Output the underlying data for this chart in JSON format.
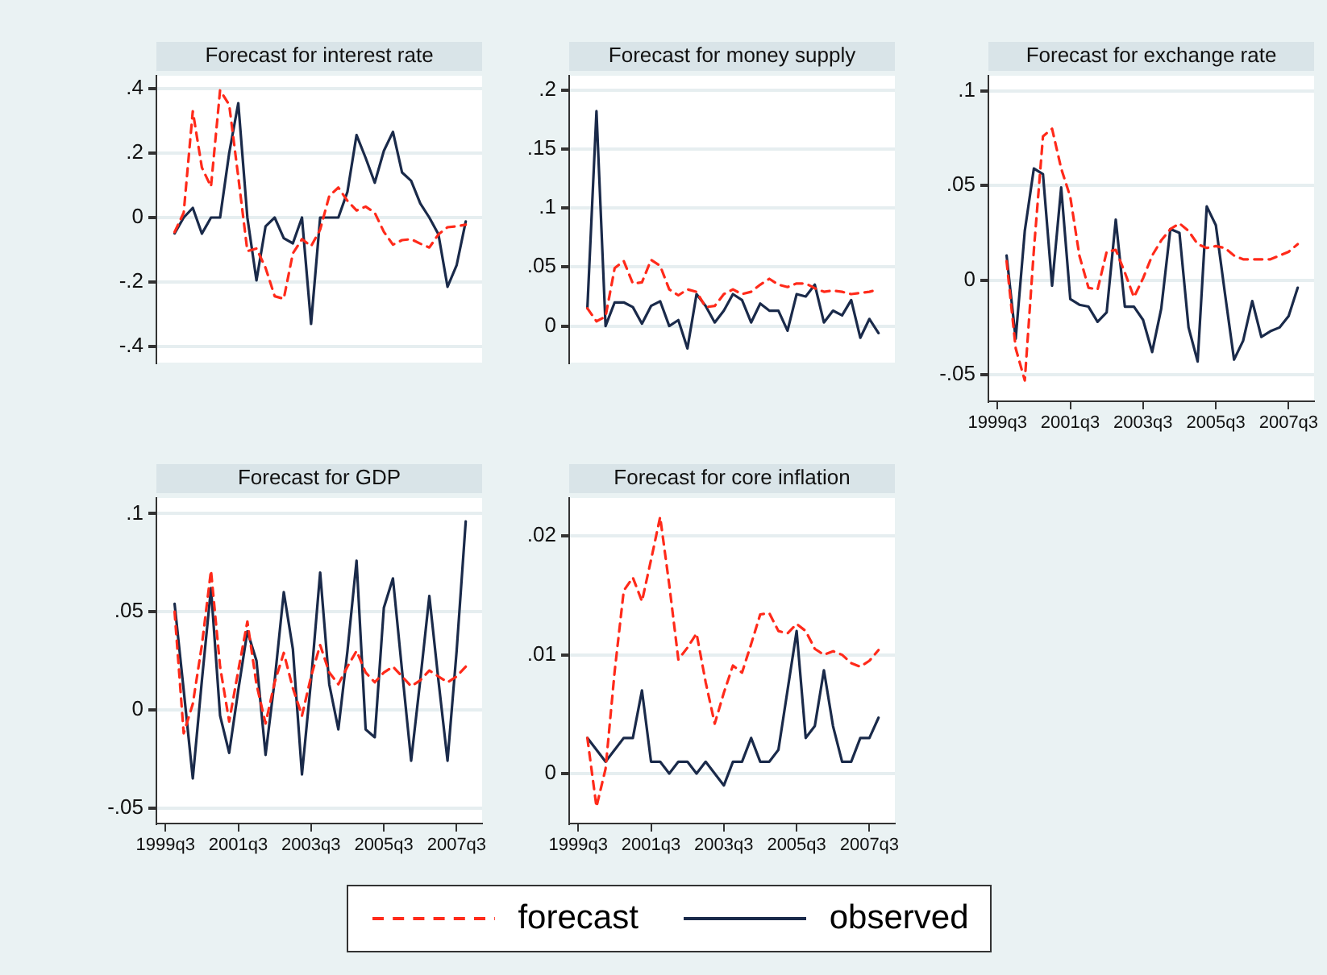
{
  "chart_data": [
    {
      "type": "line",
      "title": "Forecast for interest rate",
      "categories": [
        null,
        null,
        null,
        null,
        null,
        null,
        null,
        null,
        null,
        null,
        null,
        null,
        null,
        null,
        null,
        null,
        null,
        null,
        null,
        null,
        null,
        null,
        null,
        null,
        null,
        null,
        null,
        null,
        null,
        null,
        null,
        null,
        null,
        null
      ],
      "ylim": [
        -0.45,
        0.44
      ],
      "yticks": [
        {
          "value": -0.4,
          "label": "-.4"
        },
        {
          "value": -0.2,
          "label": "-.2"
        },
        {
          "value": 0,
          "label": "0"
        },
        {
          "value": 0.2,
          "label": ".2"
        },
        {
          "value": 0.4,
          "label": ".4"
        }
      ],
      "tick_labels": "y",
      "grid": "y",
      "legend": "bottom",
      "marker": "none",
      "series": [
        {
          "name": "forecast",
          "color": "#ff2a1a",
          "line_style": "dashed",
          "values": [
            null,
            -0.045,
            0.015,
            0.33,
            0.155,
            0.096,
            0.395,
            0.35,
            0.126,
            -0.104,
            -0.096,
            -0.156,
            -0.244,
            -0.252,
            -0.111,
            -0.067,
            -0.089,
            -0.037,
            0.067,
            0.093,
            0.052,
            0.022,
            0.034,
            0.015,
            -0.044,
            -0.084,
            -0.07,
            -0.067,
            -0.081,
            -0.093,
            -0.052,
            -0.03,
            -0.027,
            -0.022
          ]
        },
        {
          "name": "observed",
          "color": "#1a2a4a",
          "line_style": "solid",
          "values": [
            null,
            -0.049,
            0,
            0.03,
            -0.05,
            0,
            0,
            0.2,
            0.355,
            0,
            -0.195,
            -0.027,
            0,
            -0.064,
            -0.08,
            0,
            -0.33,
            0,
            0,
            0,
            0.08,
            0.256,
            0.185,
            0.108,
            0.207,
            0.266,
            0.14,
            0.114,
            0.044,
            0,
            -0.052,
            -0.215,
            -0.148,
            -0.012
          ]
        }
      ]
    },
    {
      "type": "line",
      "title": "Forecast for money supply",
      "categories": [
        null,
        null,
        null,
        null,
        null,
        null,
        null,
        null,
        null,
        null,
        null,
        null,
        null,
        null,
        null,
        null,
        null,
        null,
        null,
        null,
        null,
        null,
        null,
        null,
        null,
        null,
        null,
        null,
        null,
        null,
        null,
        null,
        null,
        null
      ],
      "ylim": [
        -0.031,
        0.212
      ],
      "yticks": [
        {
          "value": 0,
          "label": "0"
        },
        {
          "value": 0.05,
          "label": ".05"
        },
        {
          "value": 0.1,
          "label": ".1"
        },
        {
          "value": 0.15,
          "label": ".15"
        },
        {
          "value": 0.2,
          "label": ".2"
        }
      ],
      "tick_labels": "y",
      "grid": "y",
      "marker": "none",
      "series": [
        {
          "color": "#ff2a1a",
          "line_style": "dashed",
          "values": [
            null,
            0.015,
            0.004,
            0.008,
            0.049,
            0.055,
            0.036,
            0.037,
            0.056,
            0.051,
            0.031,
            0.026,
            0.031,
            0.029,
            0.016,
            0.017,
            0.027,
            0.031,
            0.027,
            0.029,
            0.035,
            0.04,
            0.035,
            0.033,
            0.036,
            0.036,
            0.032,
            0.029,
            0.03,
            0.029,
            0.027,
            0.028,
            0.029,
            0.031
          ]
        },
        {
          "color": "#1a2a4a",
          "line_style": "solid",
          "values": [
            null,
            0.015,
            0.182,
            0,
            0.02,
            0.02,
            0.016,
            0.002,
            0.017,
            0.021,
            0,
            0.005,
            -0.019,
            0.027,
            0.017,
            0.003,
            0.013,
            0.027,
            0.022,
            0.003,
            0.019,
            0.013,
            0.013,
            -0.004,
            0.027,
            0.025,
            0.035,
            0.003,
            0.013,
            0.009,
            0.022,
            -0.01,
            0.006,
            -0.006
          ]
        }
      ]
    },
    {
      "type": "line",
      "title": "Forecast for exchange rate",
      "categories": [
        "1999q3",
        null,
        null,
        null,
        null,
        null,
        null,
        null,
        "2001q3",
        null,
        null,
        null,
        null,
        null,
        null,
        null,
        "2003q3",
        null,
        null,
        null,
        null,
        null,
        null,
        null,
        "2005q3",
        null,
        null,
        null,
        null,
        null,
        null,
        null,
        "2007q3",
        null
      ],
      "ylim": [
        -0.064,
        0.108
      ],
      "yticks": [
        {
          "value": -0.05,
          "label": "-.05"
        },
        {
          "value": 0,
          "label": "0"
        },
        {
          "value": 0.05,
          "label": ".05"
        },
        {
          "value": 0.1,
          "label": ".1"
        }
      ],
      "grid": "y",
      "marker": "none",
      "series": [
        {
          "color": "#ff2a1a",
          "line_style": "dashed",
          "values": [
            null,
            0.01,
            -0.036,
            -0.053,
            0.016,
            0.076,
            0.08,
            0.059,
            0.044,
            0.013,
            -0.004,
            -0.005,
            0.015,
            0.016,
            0.004,
            -0.009,
            0.001,
            0.013,
            0.021,
            0.027,
            0.03,
            0.026,
            0.019,
            0.017,
            0.018,
            0.017,
            0.013,
            0.011,
            0.011,
            0.011,
            0.011,
            0.013,
            0.015,
            0.019
          ]
        },
        {
          "color": "#1a2a4a",
          "line_style": "solid",
          "values": [
            null,
            0.013,
            -0.031,
            0.026,
            0.059,
            0.056,
            -0.003,
            0.049,
            -0.01,
            -0.013,
            -0.014,
            -0.022,
            -0.017,
            0.032,
            -0.014,
            -0.014,
            -0.021,
            -0.038,
            -0.015,
            0.027,
            0.025,
            -0.025,
            -0.043,
            0.039,
            0.029,
            -0.007,
            -0.042,
            -0.032,
            -0.011,
            -0.03,
            -0.027,
            -0.025,
            -0.019,
            -0.004
          ]
        }
      ]
    },
    {
      "type": "line",
      "title": "Forecast for GDP",
      "categories": [
        "1999q3",
        null,
        null,
        null,
        null,
        null,
        null,
        null,
        "2001q3",
        null,
        null,
        null,
        null,
        null,
        null,
        null,
        "2003q3",
        null,
        null,
        null,
        null,
        null,
        null,
        null,
        "2005q3",
        null,
        null,
        null,
        null,
        null,
        null,
        null,
        "2007q3",
        null
      ],
      "ylim": [
        -0.058,
        0.108
      ],
      "yticks": [
        {
          "value": -0.05,
          "label": "-.05"
        },
        {
          "value": 0,
          "label": "0"
        },
        {
          "value": 0.05,
          "label": ".05"
        },
        {
          "value": 0.1,
          "label": ".1"
        }
      ],
      "grid": "y",
      "marker": "none",
      "series": [
        {
          "color": "#ff2a1a",
          "line_style": "dashed",
          "values": [
            null,
            0.05,
            -0.012,
            0.003,
            0.033,
            0.071,
            0.022,
            -0.006,
            0.02,
            0.045,
            0.013,
            -0.007,
            0.014,
            0.029,
            0.011,
            -0.003,
            0.017,
            0.033,
            0.019,
            0.013,
            0.022,
            0.03,
            0.019,
            0.014,
            0.019,
            0.022,
            0.017,
            0.012,
            0.015,
            0.02,
            0.017,
            0.014,
            0.017,
            0.022
          ]
        },
        {
          "color": "#1a2a4a",
          "line_style": "solid",
          "values": [
            null,
            0.054,
            0.01,
            -0.035,
            0.015,
            0.062,
            -0.003,
            -0.022,
            0.01,
            0.04,
            0.025,
            -0.023,
            0.015,
            0.06,
            0.031,
            -0.033,
            0.015,
            0.07,
            0.013,
            -0.01,
            0.03,
            0.076,
            -0.01,
            -0.014,
            0.052,
            0.067,
            0.02,
            -0.026,
            0.015,
            0.058,
            0.015,
            -0.026,
            0.03,
            0.096
          ]
        }
      ]
    },
    {
      "type": "line",
      "title": "Forecast for core inflation",
      "categories": [
        "1999q3",
        null,
        null,
        null,
        null,
        null,
        null,
        null,
        "2001q3",
        null,
        null,
        null,
        null,
        null,
        null,
        null,
        "2003q3",
        null,
        null,
        null,
        null,
        null,
        null,
        null,
        "2005q3",
        null,
        null,
        null,
        null,
        null,
        null,
        null,
        "2007q3",
        null
      ],
      "ylim": [
        -0.0042,
        0.0232
      ],
      "yticks": [
        {
          "value": 0,
          "label": "0"
        },
        {
          "value": 0.01,
          "label": ".01"
        },
        {
          "value": 0.02,
          "label": ".02"
        }
      ],
      "grid": "y",
      "marker": "none",
      "series": [
        {
          "color": "#ff2a1a",
          "line_style": "dashed",
          "values": [
            null,
            0.003,
            -0.0028,
            0.0004,
            0.0086,
            0.0154,
            0.0165,
            0.0145,
            0.018,
            0.0216,
            0.0159,
            0.0096,
            0.0106,
            0.0118,
            0.0077,
            0.0042,
            0.0068,
            0.0091,
            0.0085,
            0.0109,
            0.0134,
            0.0135,
            0.012,
            0.0118,
            0.0126,
            0.012,
            0.0105,
            0.01,
            0.0103,
            0.01,
            0.0093,
            0.009,
            0.0095,
            0.0104
          ]
        },
        {
          "color": "#1a2a4a",
          "line_style": "solid",
          "values": [
            null,
            0.003,
            0.002,
            0.001,
            0.002,
            0.003,
            0.003,
            0.007,
            0.001,
            0.001,
            0,
            0.001,
            0.001,
            0,
            0.001,
            0,
            -0.001,
            0.001,
            0.001,
            0.003,
            0.001,
            0.001,
            0.002,
            0.007,
            0.012,
            0.003,
            0.004,
            0.0087,
            0.004,
            0.001,
            0.001,
            0.003,
            0.003,
            0.0047
          ]
        }
      ]
    }
  ]
}
